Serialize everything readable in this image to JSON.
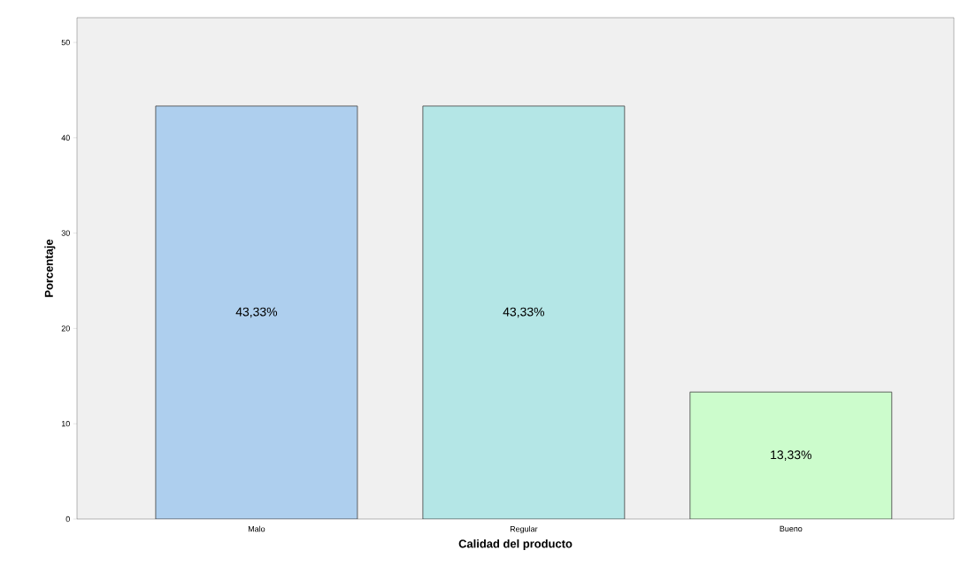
{
  "chart_data": {
    "type": "bar",
    "xlabel": "Calidad del producto",
    "ylabel": "Porcentaje",
    "categories": [
      "Malo",
      "Regular",
      "Bueno"
    ],
    "values": [
      43.33,
      43.33,
      13.33
    ],
    "colors": [
      "#aecfee",
      "#b4e6e6",
      "#ccfccc"
    ],
    "value_labels": [
      "43,33%",
      "43,33%",
      "13,33%"
    ],
    "ylim": [
      0,
      52.6
    ],
    "yticks": [
      0,
      10,
      20,
      30,
      40,
      50
    ],
    "grid": false
  }
}
